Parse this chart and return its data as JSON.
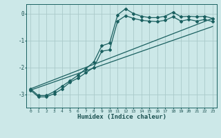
{
  "xlabel": "Humidex (Indice chaleur)",
  "bg_color": "#cce8e8",
  "grid_color": "#aacaca",
  "line_color": "#1a6060",
  "xlim": [
    -0.5,
    23.5
  ],
  "ylim": [
    -3.5,
    0.35
  ],
  "yticks": [
    0,
    -1,
    -2,
    -3
  ],
  "xticks": [
    0,
    1,
    2,
    3,
    4,
    5,
    6,
    7,
    8,
    9,
    10,
    11,
    12,
    13,
    14,
    15,
    16,
    17,
    18,
    19,
    20,
    21,
    22,
    23
  ],
  "line1_x": [
    0,
    1,
    2,
    3,
    4,
    5,
    6,
    7,
    8,
    9,
    10,
    11,
    12,
    13,
    14,
    15,
    16,
    17,
    18,
    19,
    20,
    21,
    22,
    23
  ],
  "line1_y": [
    -2.8,
    -3.05,
    -3.05,
    -2.9,
    -2.7,
    -2.5,
    -2.3,
    -2.05,
    -1.8,
    -1.2,
    -1.1,
    -0.05,
    0.18,
    0.0,
    -0.1,
    -0.15,
    -0.15,
    -0.1,
    0.05,
    -0.12,
    -0.1,
    -0.12,
    -0.1,
    -0.18
  ],
  "line2_x": [
    0,
    1,
    2,
    3,
    4,
    5,
    6,
    7,
    8,
    9,
    10,
    11,
    12,
    13,
    14,
    15,
    16,
    17,
    18,
    19,
    20,
    21,
    22,
    23
  ],
  "line2_y": [
    -2.85,
    -3.1,
    -3.1,
    -2.98,
    -2.8,
    -2.55,
    -2.4,
    -2.2,
    -2.0,
    -1.4,
    -1.35,
    -0.28,
    -0.08,
    -0.18,
    -0.25,
    -0.28,
    -0.3,
    -0.25,
    -0.12,
    -0.28,
    -0.22,
    -0.28,
    -0.22,
    -0.3
  ],
  "line3_x": [
    0,
    23
  ],
  "line3_y": [
    -2.8,
    -0.18
  ],
  "line4_x": [
    0,
    23
  ],
  "line4_y": [
    -2.85,
    -0.48
  ]
}
